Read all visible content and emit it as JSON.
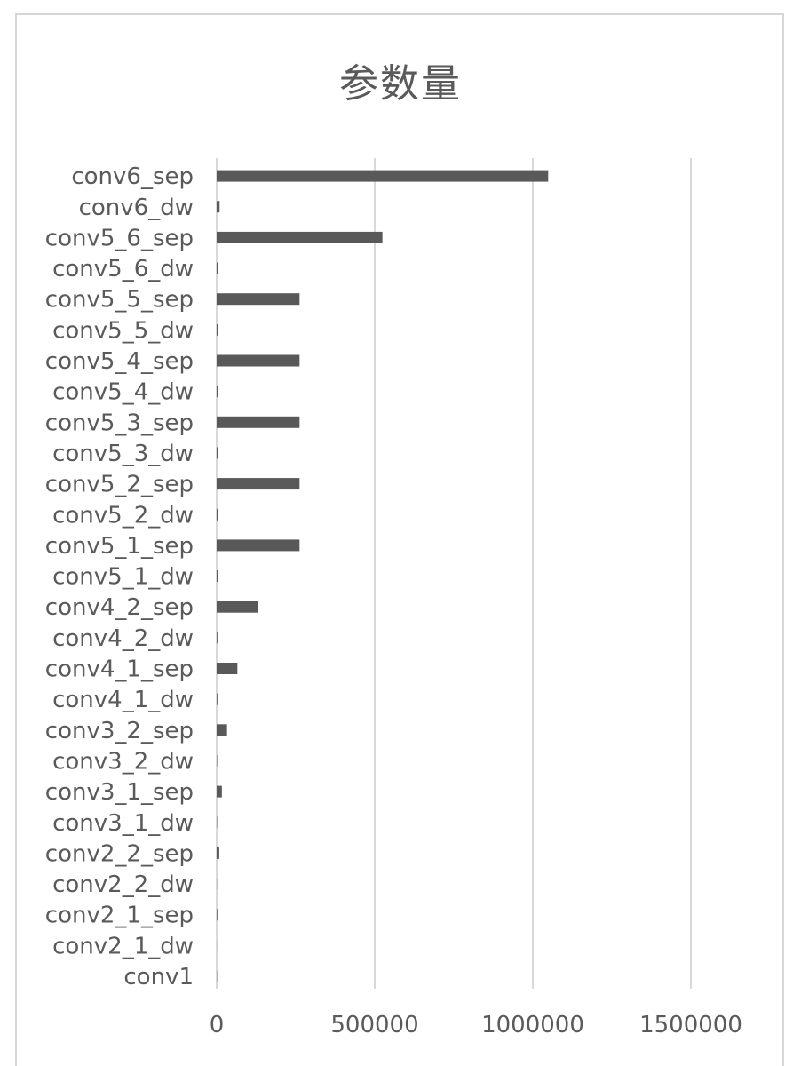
{
  "chart_data": {
    "type": "bar",
    "orientation": "horizontal",
    "title": "参数量",
    "xlabel": "",
    "ylabel": "",
    "xlim": [
      0,
      1500000
    ],
    "xticks": [
      "0",
      "500000",
      "1000000",
      "1500000"
    ],
    "grid": true,
    "legend": "none",
    "colors": {
      "bar": "#595959",
      "grid": "#d9d9d9",
      "text": "#5a5a5a"
    },
    "categories": [
      "conv1",
      "conv2_1_dw",
      "conv2_1_sep",
      "conv2_2_dw",
      "conv2_2_sep",
      "conv3_1_dw",
      "conv3_1_sep",
      "conv3_2_dw",
      "conv3_2_sep",
      "conv4_1_dw",
      "conv4_1_sep",
      "conv4_2_dw",
      "conv4_2_sep",
      "conv5_1_dw",
      "conv5_1_sep",
      "conv5_2_dw",
      "conv5_2_sep",
      "conv5_3_dw",
      "conv5_3_sep",
      "conv5_4_dw",
      "conv5_4_sep",
      "conv5_5_dw",
      "conv5_5_sep",
      "conv5_6_dw",
      "conv5_6_sep",
      "conv6_dw",
      "conv6_sep"
    ],
    "values": [
      864,
      288,
      2048,
      576,
      8192,
      1152,
      16384,
      1152,
      32768,
      2304,
      65536,
      2304,
      131072,
      4608,
      262144,
      4608,
      262144,
      4608,
      262144,
      4608,
      262144,
      4608,
      262144,
      4608,
      524288,
      9216,
      1048576
    ]
  }
}
